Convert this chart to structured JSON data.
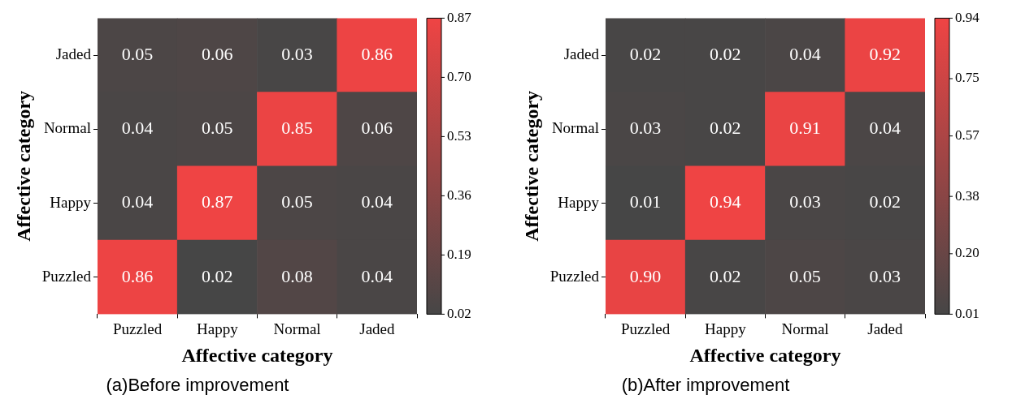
{
  "chart_data": [
    {
      "type": "heatmap",
      "xlabel": "Affective category",
      "ylabel": "Affective category",
      "categories": [
        "Puzzled",
        "Happy",
        "Normal",
        "Jaded"
      ],
      "y_categories": [
        "Jaded",
        "Normal",
        "Happy",
        "Puzzled"
      ],
      "cells": [
        [
          0.05,
          0.06,
          0.03,
          0.86
        ],
        [
          0.04,
          0.05,
          0.85,
          0.06
        ],
        [
          0.04,
          0.87,
          0.05,
          0.04
        ],
        [
          0.86,
          0.02,
          0.08,
          0.04
        ]
      ],
      "cell_labels": [
        [
          "0.05",
          "0.06",
          "0.03",
          "0.86"
        ],
        [
          "0.04",
          "0.05",
          "0.85",
          "0.06"
        ],
        [
          "0.04",
          "0.87",
          "0.05",
          "0.04"
        ],
        [
          "0.86",
          "0.02",
          "0.08",
          "0.04"
        ]
      ],
      "data_labels": true,
      "clim": [
        0.02,
        0.87
      ],
      "cticks": [
        0.02,
        0.19,
        0.36,
        0.53,
        {
          "value": 0.7,
          "label": "0.70"
        },
        0.87
      ],
      "colors": [
        "#464646",
        "#ef4444"
      ],
      "annotations": [
        "(a)Before improvement"
      ]
    },
    {
      "type": "heatmap",
      "xlabel": "Affective category",
      "ylabel": "Affective category",
      "categories": [
        "Puzzled",
        "Happy",
        "Normal",
        "Jaded"
      ],
      "y_categories": [
        "Jaded",
        "Normal",
        "Happy",
        "Puzzled"
      ],
      "cells": [
        [
          0.02,
          0.02,
          0.04,
          0.92
        ],
        [
          0.03,
          0.02,
          0.91,
          0.04
        ],
        [
          0.01,
          0.94,
          0.03,
          0.02
        ],
        [
          0.9,
          0.02,
          0.05,
          0.03
        ]
      ],
      "cell_labels": [
        [
          "0.02",
          "0.02",
          "0.04",
          "0.92"
        ],
        [
          "0.03",
          "0.02",
          "0.91",
          "0.04"
        ],
        [
          "0.01",
          "0.94",
          "0.03",
          "0.02"
        ],
        [
          "0.90",
          "0.02",
          "0.05",
          "0.03"
        ]
      ],
      "data_labels": true,
      "clim": [
        0.01,
        0.94
      ],
      "cticks": [
        0.01,
        {
          "value": 0.2,
          "label": "0.20"
        },
        0.38,
        0.57,
        0.75,
        0.94
      ],
      "colors": [
        "#464646",
        "#ef4444"
      ],
      "annotations": [
        "(b)After improvement"
      ]
    }
  ]
}
